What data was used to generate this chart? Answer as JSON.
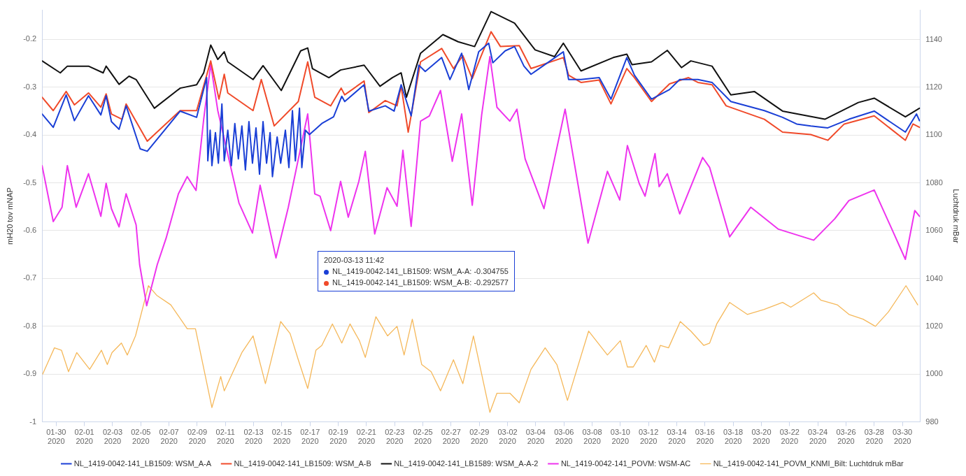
{
  "chart_data": {
    "type": "line",
    "ylabel": "mH20 tov mNAP",
    "y2label": "Luchtdruk mBar",
    "xlim": [
      "2020-01-29",
      "2020-03-31T06:00"
    ],
    "xticks": [
      {
        "value": "2020-01-30",
        "label": "01-30\n2020"
      },
      {
        "value": "2020-02-01",
        "label": "02-01\n2020"
      },
      {
        "value": "2020-02-03",
        "label": "02-03\n2020"
      },
      {
        "value": "2020-02-05",
        "label": "02-05\n2020"
      },
      {
        "value": "2020-02-07",
        "label": "02-07\n2020"
      },
      {
        "value": "2020-02-09",
        "label": "02-09\n2020"
      },
      {
        "value": "2020-02-11",
        "label": "02-11\n2020"
      },
      {
        "value": "2020-02-13",
        "label": "02-13\n2020"
      },
      {
        "value": "2020-02-15",
        "label": "02-15\n2020"
      },
      {
        "value": "2020-02-17",
        "label": "02-17\n2020"
      },
      {
        "value": "2020-02-19",
        "label": "02-19\n2020"
      },
      {
        "value": "2020-02-21",
        "label": "02-21\n2020"
      },
      {
        "value": "2020-02-23",
        "label": "02-23\n2020"
      },
      {
        "value": "2020-02-25",
        "label": "02-25\n2020"
      },
      {
        "value": "2020-02-27",
        "label": "02-27\n2020"
      },
      {
        "value": "2020-02-29",
        "label": "02-29\n2020"
      },
      {
        "value": "2020-03-02",
        "label": "03-02\n2020"
      },
      {
        "value": "2020-03-04",
        "label": "03-04\n2020"
      },
      {
        "value": "2020-03-06",
        "label": "03-06\n2020"
      },
      {
        "value": "2020-03-08",
        "label": "03-08\n2020"
      },
      {
        "value": "2020-03-10",
        "label": "03-10\n2020"
      },
      {
        "value": "2020-03-12",
        "label": "03-12\n2020"
      },
      {
        "value": "2020-03-14",
        "label": "03-14\n2020"
      },
      {
        "value": "2020-03-16",
        "label": "03-16\n2020"
      },
      {
        "value": "2020-03-18",
        "label": "03-18\n2020"
      },
      {
        "value": "2020-03-20",
        "label": "03-20\n2020"
      },
      {
        "value": "2020-03-22",
        "label": "03-22\n2020"
      },
      {
        "value": "2020-03-24",
        "label": "03-24\n2020"
      },
      {
        "value": "2020-03-26",
        "label": "03-26\n2020"
      },
      {
        "value": "2020-03-28",
        "label": "03-28\n2020"
      },
      {
        "value": "2020-03-30",
        "label": "03-30\n2020"
      }
    ],
    "ylim": [
      -1,
      -0.139
    ],
    "yticks": [
      -1,
      -0.9,
      -0.8,
      -0.7,
      -0.6,
      -0.5,
      -0.4,
      -0.3,
      -0.2
    ],
    "y2lim": [
      980,
      1152.3
    ],
    "y2ticks": [
      980,
      1000,
      1020,
      1040,
      1060,
      1080,
      1100,
      1120,
      1140
    ],
    "grid": "y",
    "legend": "bottom",
    "marker": "none",
    "line_style": "solid",
    "annotations": [
      "2020-03-13 11:42",
      "NL_1419-0042-141_LB1509: WSM_A-A: -0.304755",
      "NL_1419-0042-141_LB1509: WSM_A-B: -0.292577"
    ],
    "series": [
      {
        "name": "NL_1419-0042-141_LB1509: WSM_A-A",
        "color": "#1a3fd6",
        "x": [
          "2020-01-29T00:00",
          "2020-01-29T19:00",
          "2020-01-30T17:00",
          "2020-01-31T07:00",
          "2020-02-01T07:00",
          "2020-02-02T04:00",
          "2020-02-02T13:00",
          "2020-02-02T22:00",
          "2020-02-03T11:00",
          "2020-02-03T23:00",
          "2020-02-04T23:00",
          "2020-02-05T11:00",
          "2020-02-07T19:00",
          "2020-02-08T23:00",
          "2020-02-09T16:00",
          "2020-02-09T18:00",
          "2020-02-09T22:00",
          "2020-02-10T01:00",
          "2020-02-10T07:00",
          "2020-02-10T12:00",
          "2020-02-10T18:00",
          "2020-02-10T22:00",
          "2020-02-11T04:00",
          "2020-02-11T10:00",
          "2020-02-11T16:00",
          "2020-02-11T22:00",
          "2020-02-12T04:00",
          "2020-02-12T10:00",
          "2020-02-12T16:00",
          "2020-02-12T22:00",
          "2020-02-13T04:00",
          "2020-02-13T10:00",
          "2020-02-13T16:00",
          "2020-02-13T22:00",
          "2020-02-14T04:00",
          "2020-02-14T08:00",
          "2020-02-14T16:00",
          "2020-02-14T22:00",
          "2020-02-15T06:00",
          "2020-02-15T12:00",
          "2020-02-15T18:00",
          "2020-02-15T23:00",
          "2020-02-16T06:00",
          "2020-02-16T10:00",
          "2020-02-16T16:00",
          "2020-02-16T23:00",
          "2020-02-17T20:00",
          "2020-02-18T16:00",
          "2020-02-19T06:00",
          "2020-02-19T11:00",
          "2020-02-20T20:00",
          "2020-02-21T04:00",
          "2020-02-22T08:00",
          "2020-02-22T23:00",
          "2020-02-23T11:00",
          "2020-02-24T04:00",
          "2020-02-24T17:00",
          "2020-02-25T04:00",
          "2020-02-26T08:00",
          "2020-02-26T22:00",
          "2020-02-27T18:00",
          "2020-02-28T06:00",
          "2020-02-28T23:00",
          "2020-02-29T16:00",
          "2020-02-29T23:00",
          "2020-03-01T20:00",
          "2020-03-02T12:00",
          "2020-03-03T04:00",
          "2020-03-03T16:00",
          "2020-03-05T23:00",
          "2020-03-06T08:00",
          "2020-03-07T05:00",
          "2020-03-08T12:00",
          "2020-03-09T08:00",
          "2020-03-10T11:00",
          "2020-03-11T00:00",
          "2020-03-12T05:00",
          "2020-03-13T11:42",
          "2020-03-14T05:00",
          "2020-03-15T12:00",
          "2020-03-16T12:00",
          "2020-03-17T20:00",
          "2020-03-20T05:00",
          "2020-03-21T12:00",
          "2020-03-22T12:00",
          "2020-03-23T12:00",
          "2020-03-24T17:00",
          "2020-03-26T05:00",
          "2020-03-28T00:00",
          "2020-03-30T05:00",
          "2020-03-31T00:00",
          "2020-03-31T05:00"
        ],
        "values": [
          -0.356,
          -0.384,
          -0.316,
          -0.37,
          -0.318,
          -0.358,
          -0.318,
          -0.372,
          -0.388,
          -0.339,
          -0.429,
          -0.434,
          -0.35,
          -0.363,
          -0.28,
          -0.454,
          -0.39,
          -0.464,
          -0.395,
          -0.459,
          -0.335,
          -0.454,
          -0.39,
          -0.464,
          -0.376,
          -0.45,
          -0.381,
          -0.473,
          -0.372,
          -0.459,
          -0.385,
          -0.482,
          -0.372,
          -0.459,
          -0.395,
          -0.487,
          -0.404,
          -0.459,
          -0.39,
          -0.468,
          -0.349,
          -0.454,
          -0.344,
          -0.468,
          -0.39,
          -0.399,
          -0.376,
          -0.362,
          -0.319,
          -0.33,
          -0.295,
          -0.35,
          -0.339,
          -0.35,
          -0.295,
          -0.36,
          -0.254,
          -0.267,
          -0.238,
          -0.284,
          -0.229,
          -0.305,
          -0.226,
          -0.208,
          -0.249,
          -0.224,
          -0.215,
          -0.256,
          -0.273,
          -0.226,
          -0.284,
          -0.284,
          -0.28,
          -0.325,
          -0.238,
          -0.275,
          -0.325,
          -0.305,
          -0.284,
          -0.284,
          -0.29,
          -0.33,
          -0.349,
          -0.363,
          -0.377,
          -0.381,
          -0.385,
          -0.367,
          -0.35,
          -0.394,
          -0.356,
          -0.37
        ]
      },
      {
        "name": "NL_1419-0042-141_LB1509: WSM_A-B",
        "color": "#f04a2a",
        "x": [
          "2020-01-29T00:00",
          "2020-01-29T19:00",
          "2020-01-30T17:00",
          "2020-01-31T07:00",
          "2020-02-01T07:00",
          "2020-02-02T04:00",
          "2020-02-02T13:00",
          "2020-02-02T22:00",
          "2020-02-03T16:00",
          "2020-02-03T23:00",
          "2020-02-05T11:00",
          "2020-02-07T19:00",
          "2020-02-08T23:00",
          "2020-02-09T23:00",
          "2020-02-10T13:00",
          "2020-02-10T22:00",
          "2020-02-11T04:00",
          "2020-02-12T23:00",
          "2020-02-13T13:00",
          "2020-02-14T11:00",
          "2020-02-16T04:00",
          "2020-02-16T20:00",
          "2020-02-17T08:00",
          "2020-02-18T11:00",
          "2020-02-19T05:00",
          "2020-02-19T11:00",
          "2020-02-20T20:00",
          "2020-02-21T04:00",
          "2020-02-22T08:00",
          "2020-02-23T04:00",
          "2020-02-23T11:00",
          "2020-02-23T23:00",
          "2020-02-24T20:00",
          "2020-02-26T08:00",
          "2020-02-27T04:00",
          "2020-02-27T20:00",
          "2020-02-28T12:00",
          "2020-02-29T02:00",
          "2020-02-29T20:00",
          "2020-03-01T12:00",
          "2020-03-02T20:00",
          "2020-03-03T16:00",
          "2020-03-05T23:00",
          "2020-03-06T08:00",
          "2020-03-07T05:00",
          "2020-03-08T12:00",
          "2020-03-09T08:00",
          "2020-03-10T11:00",
          "2020-03-11T00:00",
          "2020-03-12T05:00",
          "2020-03-13T11:42",
          "2020-03-14T20:00",
          "2020-03-15T12:00",
          "2020-03-16T12:00",
          "2020-03-17T12:00",
          "2020-03-20T05:00",
          "2020-03-21T12:00",
          "2020-03-23T12:00",
          "2020-03-24T17:00",
          "2020-03-25T21:00",
          "2020-03-28T00:00",
          "2020-03-30T05:00",
          "2020-03-30T18:00",
          "2020-03-31T05:00"
        ],
        "values": [
          -0.321,
          -0.349,
          -0.309,
          -0.337,
          -0.312,
          -0.342,
          -0.314,
          -0.356,
          -0.367,
          -0.335,
          -0.413,
          -0.349,
          -0.349,
          -0.245,
          -0.325,
          -0.273,
          -0.312,
          -0.349,
          -0.284,
          -0.381,
          -0.33,
          -0.247,
          -0.321,
          -0.339,
          -0.302,
          -0.316,
          -0.287,
          -0.353,
          -0.328,
          -0.339,
          -0.298,
          -0.394,
          -0.247,
          -0.219,
          -0.261,
          -0.234,
          -0.282,
          -0.238,
          -0.184,
          -0.215,
          -0.213,
          -0.261,
          -0.238,
          -0.275,
          -0.29,
          -0.285,
          -0.335,
          -0.261,
          -0.28,
          -0.33,
          -0.293,
          -0.28,
          -0.29,
          -0.295,
          -0.339,
          -0.367,
          -0.394,
          -0.399,
          -0.411,
          -0.377,
          -0.36,
          -0.411,
          -0.377,
          -0.384
        ]
      },
      {
        "name": "NL_1419-0042-141_LB1589: WSM_A-A-2",
        "color": "#111111",
        "x": [
          "2020-01-29T00:00",
          "2020-01-30T07:00",
          "2020-01-30T19:00",
          "2020-02-01T07:00",
          "2020-02-02T08:00",
          "2020-02-02T13:00",
          "2020-02-03T11:00",
          "2020-02-04T04:00",
          "2020-02-04T16:00",
          "2020-02-05T23:00",
          "2020-02-07T19:00",
          "2020-02-08T23:00",
          "2020-02-09T11:00",
          "2020-02-09T23:00",
          "2020-02-10T11:00",
          "2020-02-10T22:00",
          "2020-02-11T04:00",
          "2020-02-12T23:00",
          "2020-02-13T16:00",
          "2020-02-14T23:00",
          "2020-02-16T08:00",
          "2020-02-16T20:00",
          "2020-02-17T04:00",
          "2020-02-18T08:00",
          "2020-02-19T04:00",
          "2020-02-20T20:00",
          "2020-02-21T23:00",
          "2020-02-22T20:00",
          "2020-02-23T11:00",
          "2020-02-23T20:00",
          "2020-02-24T20:00",
          "2020-02-26T10:00",
          "2020-02-27T12:00",
          "2020-02-28T16:00",
          "2020-02-29T20:00",
          "2020-03-02T12:00",
          "2020-03-03T23:00",
          "2020-03-05T08:00",
          "2020-03-05T23:00",
          "2020-03-07T05:00",
          "2020-03-09T12:00",
          "2020-03-10T11:00",
          "2020-03-10T20:00",
          "2020-03-12T05:00",
          "2020-03-13T08:00",
          "2020-03-14T08:00",
          "2020-03-15T00:00",
          "2020-03-16T12:00",
          "2020-03-17T20:00",
          "2020-03-19T12:00",
          "2020-03-21T12:00",
          "2020-03-24T12:00",
          "2020-03-26T21:00",
          "2020-03-28T00:00",
          "2020-03-30T05:00",
          "2020-03-31T05:00"
        ],
        "values": [
          -0.245,
          -0.27,
          -0.256,
          -0.256,
          -0.27,
          -0.256,
          -0.294,
          -0.277,
          -0.284,
          -0.344,
          -0.302,
          -0.295,
          -0.27,
          -0.212,
          -0.242,
          -0.226,
          -0.247,
          -0.284,
          -0.255,
          -0.307,
          -0.224,
          -0.218,
          -0.261,
          -0.28,
          -0.264,
          -0.254,
          -0.298,
          -0.28,
          -0.27,
          -0.321,
          -0.229,
          -0.19,
          -0.205,
          -0.215,
          -0.142,
          -0.166,
          -0.222,
          -0.236,
          -0.208,
          -0.266,
          -0.238,
          -0.231,
          -0.253,
          -0.247,
          -0.223,
          -0.259,
          -0.245,
          -0.256,
          -0.316,
          -0.309,
          -0.35,
          -0.367,
          -0.332,
          -0.323,
          -0.362,
          -0.344
        ]
      },
      {
        "name": "NL_1419-0042-141_POVM: WSM-AC",
        "color": "#ee33ee",
        "x": [
          "2020-01-29T00:00",
          "2020-01-29T19:00",
          "2020-01-30T10:00",
          "2020-01-30T19:00",
          "2020-01-31T10:00",
          "2020-02-01T07:00",
          "2020-02-02T04:00",
          "2020-02-02T13:00",
          "2020-02-02T22:00",
          "2020-02-03T11:00",
          "2020-02-03T23:00",
          "2020-02-04T16:00",
          "2020-02-04T22:00",
          "2020-02-05T10:00",
          "2020-02-06T04:00",
          "2020-02-06T19:00",
          "2020-02-07T16:00",
          "2020-02-08T07:00",
          "2020-02-08T22:00",
          "2020-02-09T11:00",
          "2020-02-09T23:00",
          "2020-02-10T11:00",
          "2020-02-11T23:00",
          "2020-02-12T22:00",
          "2020-02-13T11:00",
          "2020-02-14T14:00",
          "2020-02-15T11:00",
          "2020-02-16T20:00",
          "2020-02-17T08:00",
          "2020-02-17T17:00",
          "2020-02-18T11:00",
          "2020-02-19T04:00",
          "2020-02-19T17:00",
          "2020-02-20T11:00",
          "2020-02-20T22:00",
          "2020-02-21T14:00",
          "2020-02-22T11:00",
          "2020-02-23T04:00",
          "2020-02-23T14:00",
          "2020-02-24T04:00",
          "2020-02-24T20:00",
          "2020-02-25T11:00",
          "2020-02-26T06:00",
          "2020-02-27T02:00",
          "2020-02-27T18:00",
          "2020-02-28T12:00",
          "2020-02-29T04:00",
          "2020-02-29T18:00",
          "2020-03-01T06:00",
          "2020-03-02T04:00",
          "2020-03-02T16:00",
          "2020-03-03T06:00",
          "2020-03-04T14:00",
          "2020-03-06T02:00",
          "2020-03-07T17:00",
          "2020-03-09T02:00",
          "2020-03-09T23:00",
          "2020-03-10T12:00",
          "2020-03-11T08:00",
          "2020-03-11T18:00",
          "2020-03-12T11:00",
          "2020-03-12T18:00",
          "2020-03-13T08:00",
          "2020-03-14T05:00",
          "2020-03-15T20:00",
          "2020-03-16T08:00",
          "2020-03-17T18:00",
          "2020-03-19T06:00",
          "2020-03-21T05:00",
          "2020-03-23T17:00",
          "2020-03-25T05:00",
          "2020-03-26T05:00",
          "2020-03-28T00:00",
          "2020-03-29T09:00",
          "2020-03-30T05:00",
          "2020-03-30T21:00",
          "2020-03-31T05:00"
        ],
        "values": [
          -0.464,
          -0.581,
          -0.551,
          -0.464,
          -0.551,
          -0.481,
          -0.57,
          -0.501,
          -0.554,
          -0.592,
          -0.523,
          -0.588,
          -0.671,
          -0.757,
          -0.671,
          -0.616,
          -0.523,
          -0.487,
          -0.516,
          -0.367,
          -0.252,
          -0.349,
          -0.542,
          -0.605,
          -0.505,
          -0.657,
          -0.551,
          -0.356,
          -0.523,
          -0.528,
          -0.6,
          -0.497,
          -0.572,
          -0.497,
          -0.434,
          -0.607,
          -0.51,
          -0.549,
          -0.432,
          -0.591,
          -0.371,
          -0.36,
          -0.307,
          -0.455,
          -0.356,
          -0.547,
          -0.358,
          -0.236,
          -0.342,
          -0.371,
          -0.346,
          -0.45,
          -0.554,
          -0.346,
          -0.626,
          -0.476,
          -0.536,
          -0.422,
          -0.501,
          -0.528,
          -0.439,
          -0.508,
          -0.481,
          -0.565,
          -0.447,
          -0.468,
          -0.613,
          -0.551,
          -0.597,
          -0.62,
          -0.575,
          -0.537,
          -0.515,
          -0.605,
          -0.66,
          -0.558,
          -0.57
        ]
      },
      {
        "name": "NL_1419-0042-141_POVM_KNMI_Bilt: Luchtdruk mBar",
        "color": "#f5b85a",
        "axis": "y2",
        "x": [
          "2020-01-29T01:00",
          "2020-01-29T21:00",
          "2020-01-30T09:00",
          "2020-01-30T21:00",
          "2020-01-31T11:00",
          "2020-02-01T09:00",
          "2020-02-02T05:00",
          "2020-02-02T15:00",
          "2020-02-02T23:00",
          "2020-02-03T15:00",
          "2020-02-04T01:00",
          "2020-02-04T15:00",
          "2020-02-05T13:00",
          "2020-02-06T03:00",
          "2020-02-07T03:00",
          "2020-02-08T07:00",
          "2020-02-08T21:00",
          "2020-02-10T01:00",
          "2020-02-10T16:00",
          "2020-02-10T22:00",
          "2020-02-12T04:00",
          "2020-02-12T23:00",
          "2020-02-13T20:00",
          "2020-02-14T22:00",
          "2020-02-15T14:00",
          "2020-02-16T04:00",
          "2020-02-16T20:00",
          "2020-02-17T10:00",
          "2020-02-17T20:00",
          "2020-02-18T14:00",
          "2020-02-19T06:00",
          "2020-02-19T20:00",
          "2020-02-20T12:00",
          "2020-02-20T22:00",
          "2020-02-21T16:00",
          "2020-02-22T12:00",
          "2020-02-23T04:00",
          "2020-02-23T16:00",
          "2020-02-24T06:00",
          "2020-02-24T22:00",
          "2020-02-25T14:00",
          "2020-02-26T06:00",
          "2020-02-27T04:00",
          "2020-02-27T20:00",
          "2020-02-28T14:00",
          "2020-02-29T18:00",
          "2020-03-01T06:00",
          "2020-03-02T04:00",
          "2020-03-02T20:00",
          "2020-03-03T16:00",
          "2020-03-04T16:00",
          "2020-03-05T12:00",
          "2020-03-06T06:00",
          "2020-03-07T18:00",
          "2020-03-09T02:00",
          "2020-03-10T00:00",
          "2020-03-10T12:00",
          "2020-03-10T22:00",
          "2020-03-11T20:00",
          "2020-03-12T10:00",
          "2020-03-12T20:00",
          "2020-03-13T10:00",
          "2020-03-14T06:00",
          "2020-03-15T00:00",
          "2020-03-15T22:00",
          "2020-03-16T08:00",
          "2020-03-16T20:00",
          "2020-03-17T18:00",
          "2020-03-19T00:00",
          "2020-03-20T04:00",
          "2020-03-21T12:00",
          "2020-03-22T02:00",
          "2020-03-23T17:00",
          "2020-03-24T05:00",
          "2020-03-25T09:00",
          "2020-03-26T05:00",
          "2020-03-27T05:00",
          "2020-03-28T02:00",
          "2020-03-29T00:00",
          "2020-03-30T06:00",
          "2020-03-31T02:00"
        ],
        "values": [
          1000,
          1011,
          1010,
          1001,
          1009,
          1002,
          1010,
          1004,
          1009,
          1013,
          1008,
          1016,
          1037,
          1033,
          1029,
          1019,
          1019,
          986,
          999,
          993,
          1009,
          1016,
          996,
          1022,
          1017,
          1006,
          994,
          1010,
          1012,
          1021,
          1013,
          1021,
          1014,
          1007,
          1024,
          1016,
          1020,
          1008,
          1023,
          1004,
          1001,
          993,
          1006,
          996,
          1016,
          984,
          992,
          992,
          988,
          1002,
          1011,
          1004,
          989,
          1018,
          1008,
          1014,
          1003,
          1003,
          1012,
          1005,
          1012,
          1011,
          1022,
          1018,
          1012,
          1013,
          1021,
          1030,
          1025,
          1027,
          1030,
          1028,
          1034,
          1031,
          1029,
          1025,
          1023,
          1020,
          1026,
          1037,
          1029
        ]
      }
    ]
  }
}
